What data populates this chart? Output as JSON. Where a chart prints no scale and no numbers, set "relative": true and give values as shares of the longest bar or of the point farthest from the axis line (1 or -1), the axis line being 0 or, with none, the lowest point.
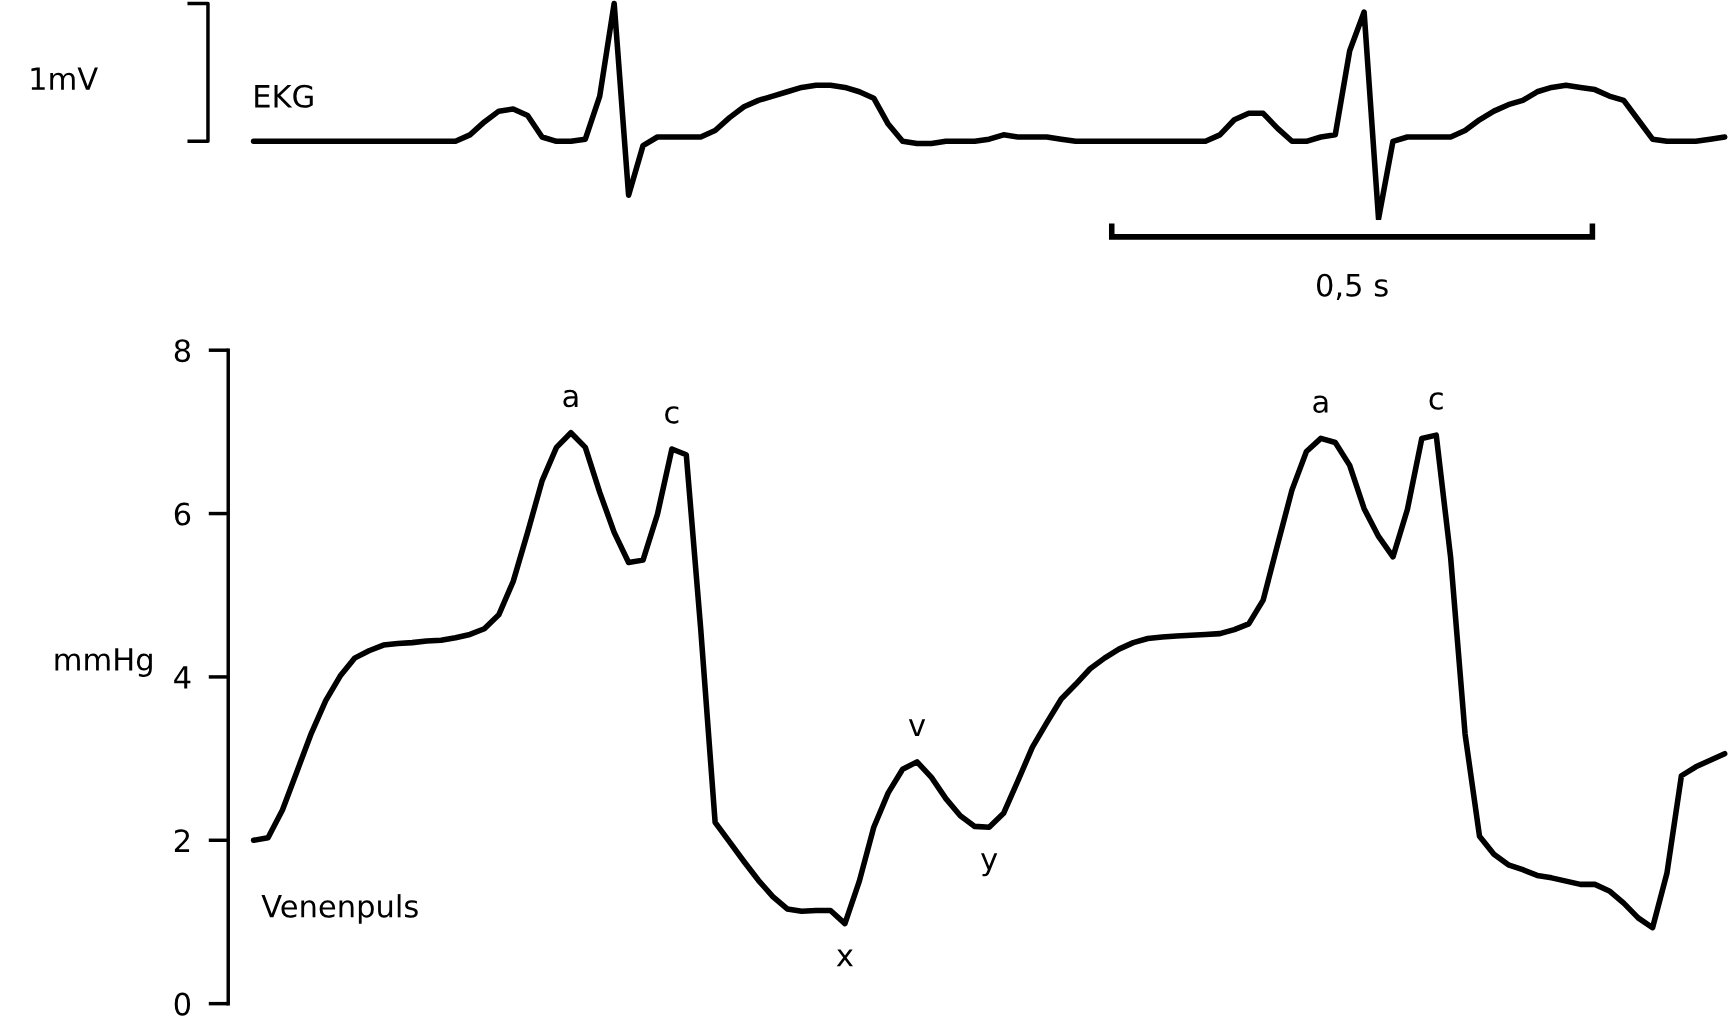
{
  "chart_data": [
    {
      "type": "line",
      "relative": true,
      "tick_labels": false,
      "grid": false,
      "legend": false,
      "marker": "none",
      "line_style": "solid",
      "annotations": [
        "1mV",
        "0,5 s"
      ],
      "categories": [
        null,
        null,
        null,
        null,
        null,
        null,
        null,
        null,
        null,
        null,
        null,
        null,
        null,
        null,
        null,
        null,
        null,
        null,
        null,
        null,
        null,
        null,
        null,
        null,
        null,
        null,
        null,
        null,
        null,
        null,
        null,
        null,
        null,
        null,
        null,
        null,
        null,
        null,
        null,
        null,
        null,
        null,
        null,
        null,
        null,
        null,
        null,
        null,
        null,
        null,
        null,
        null,
        null,
        null,
        null,
        null,
        null,
        null,
        null,
        null,
        null,
        null,
        null,
        null,
        null,
        null,
        null,
        null,
        null,
        null,
        null,
        null,
        null,
        null,
        null,
        null,
        null,
        null,
        null,
        null,
        null,
        null,
        null,
        null,
        null,
        null,
        null,
        null,
        null,
        null,
        null,
        null,
        null,
        null,
        null,
        null,
        null,
        null,
        null,
        null,
        null,
        null,
        null
      ],
      "series": [
        {
          "name": "EKG",
          "color": "#000000",
          "values": [
            0.36,
            0.36,
            0.36,
            0.36,
            0.36,
            0.36,
            0.36,
            0.36,
            0.36,
            0.36,
            0.36,
            0.36,
            0.36,
            0.36,
            0.36,
            0.39,
            0.45,
            0.5,
            0.51,
            0.48,
            0.38,
            0.36,
            0.36,
            0.37,
            0.57,
            1,
            0.11,
            0.34,
            0.38,
            0.38,
            0.38,
            0.38,
            0.41,
            0.47,
            0.52,
            0.55,
            0.57,
            0.59,
            0.61,
            0.62,
            0.62,
            0.61,
            0.59,
            0.56,
            0.44,
            0.36,
            0.35,
            0.35,
            0.36,
            0.36,
            0.36,
            0.37,
            0.39,
            0.38,
            0.38,
            0.38,
            0.37,
            0.36,
            0.36,
            0.36,
            0.36,
            0.36,
            0.36,
            0.36,
            0.36,
            0.36,
            0.36,
            0.39,
            0.46,
            0.49,
            0.49,
            0.42,
            0.36,
            0.36,
            0.38,
            0.39,
            0.78,
            0.96,
            0,
            0.36,
            0.38,
            0.38,
            0.38,
            0.38,
            0.41,
            0.46,
            0.5,
            0.53,
            0.55,
            0.59,
            0.61,
            0.62,
            0.61,
            0.6,
            0.57,
            0.55,
            0.46,
            0.37,
            0.36,
            0.36,
            0.36,
            0.37,
            0.38
          ]
        }
      ]
    },
    {
      "type": "line",
      "ylabel": "mmHg",
      "ylim": [
        0,
        8
      ],
      "yticks": [
        0,
        2,
        4,
        6,
        8
      ],
      "tick_labels": "y",
      "grid": false,
      "legend": false,
      "marker": "none",
      "line_style": "solid",
      "annotations": [
        {
          "text": "a",
          "y": 6.99
        },
        {
          "text": "c",
          "y": 6.79
        },
        {
          "text": "x",
          "y": 0.98
        },
        {
          "text": "v",
          "y": 2.96
        },
        {
          "text": "y",
          "y": 2.16
        },
        {
          "text": "a",
          "y": 6.92
        },
        {
          "text": "c",
          "y": 6.96
        }
      ],
      "categories": [
        null,
        null,
        null,
        null,
        null,
        null,
        null,
        null,
        null,
        null,
        null,
        null,
        null,
        null,
        null,
        null,
        null,
        null,
        null,
        null,
        null,
        null,
        null,
        null,
        null,
        null,
        null,
        null,
        null,
        null,
        null,
        null,
        null,
        null,
        null,
        null,
        null,
        null,
        null,
        null,
        null,
        null,
        null,
        null,
        null,
        null,
        null,
        null,
        null,
        null,
        null,
        null,
        null,
        null,
        null,
        null,
        null,
        null,
        null,
        null,
        null,
        null,
        null,
        null,
        null,
        null,
        null,
        null,
        null,
        null,
        null,
        null,
        null,
        null,
        null,
        null,
        null,
        null,
        null,
        null,
        null,
        null,
        null,
        null,
        null,
        null,
        null,
        null,
        null,
        null,
        null,
        null,
        null,
        null,
        null,
        null,
        null,
        null,
        null,
        null,
        null,
        null,
        null
      ],
      "series": [
        {
          "name": "Venenpuls",
          "color": "#000000",
          "values": [
            2.0,
            2.03,
            2.37,
            2.84,
            3.31,
            3.71,
            4.01,
            4.23,
            4.32,
            4.39,
            4.41,
            4.42,
            4.44,
            4.45,
            4.48,
            4.52,
            4.59,
            4.76,
            5.17,
            5.77,
            6.4,
            6.81,
            6.99,
            6.81,
            6.26,
            5.77,
            5.4,
            5.43,
            5.99,
            6.79,
            6.72,
            4.59,
            2.22,
            1.98,
            1.74,
            1.51,
            1.31,
            1.16,
            1.13,
            1.14,
            1.14,
            0.98,
            1.5,
            2.16,
            2.58,
            2.87,
            2.96,
            2.77,
            2.51,
            2.3,
            2.17,
            2.16,
            2.33,
            2.73,
            3.14,
            3.44,
            3.73,
            3.91,
            4.1,
            4.23,
            4.34,
            4.42,
            4.47,
            4.49,
            4.5,
            4.51,
            4.52,
            4.53,
            4.58,
            4.65,
            4.94,
            5.62,
            6.29,
            6.76,
            6.92,
            6.87,
            6.59,
            6.06,
            5.72,
            5.47,
            6.05,
            6.92,
            6.96,
            5.46,
            3.3,
            2.05,
            1.83,
            1.7,
            1.64,
            1.57,
            1.54,
            1.5,
            1.46,
            1.46,
            1.38,
            1.23,
            1.05,
            0.93,
            1.6,
            2.79,
            2.9,
            2.98,
            3.06
          ]
        }
      ]
    }
  ]
}
